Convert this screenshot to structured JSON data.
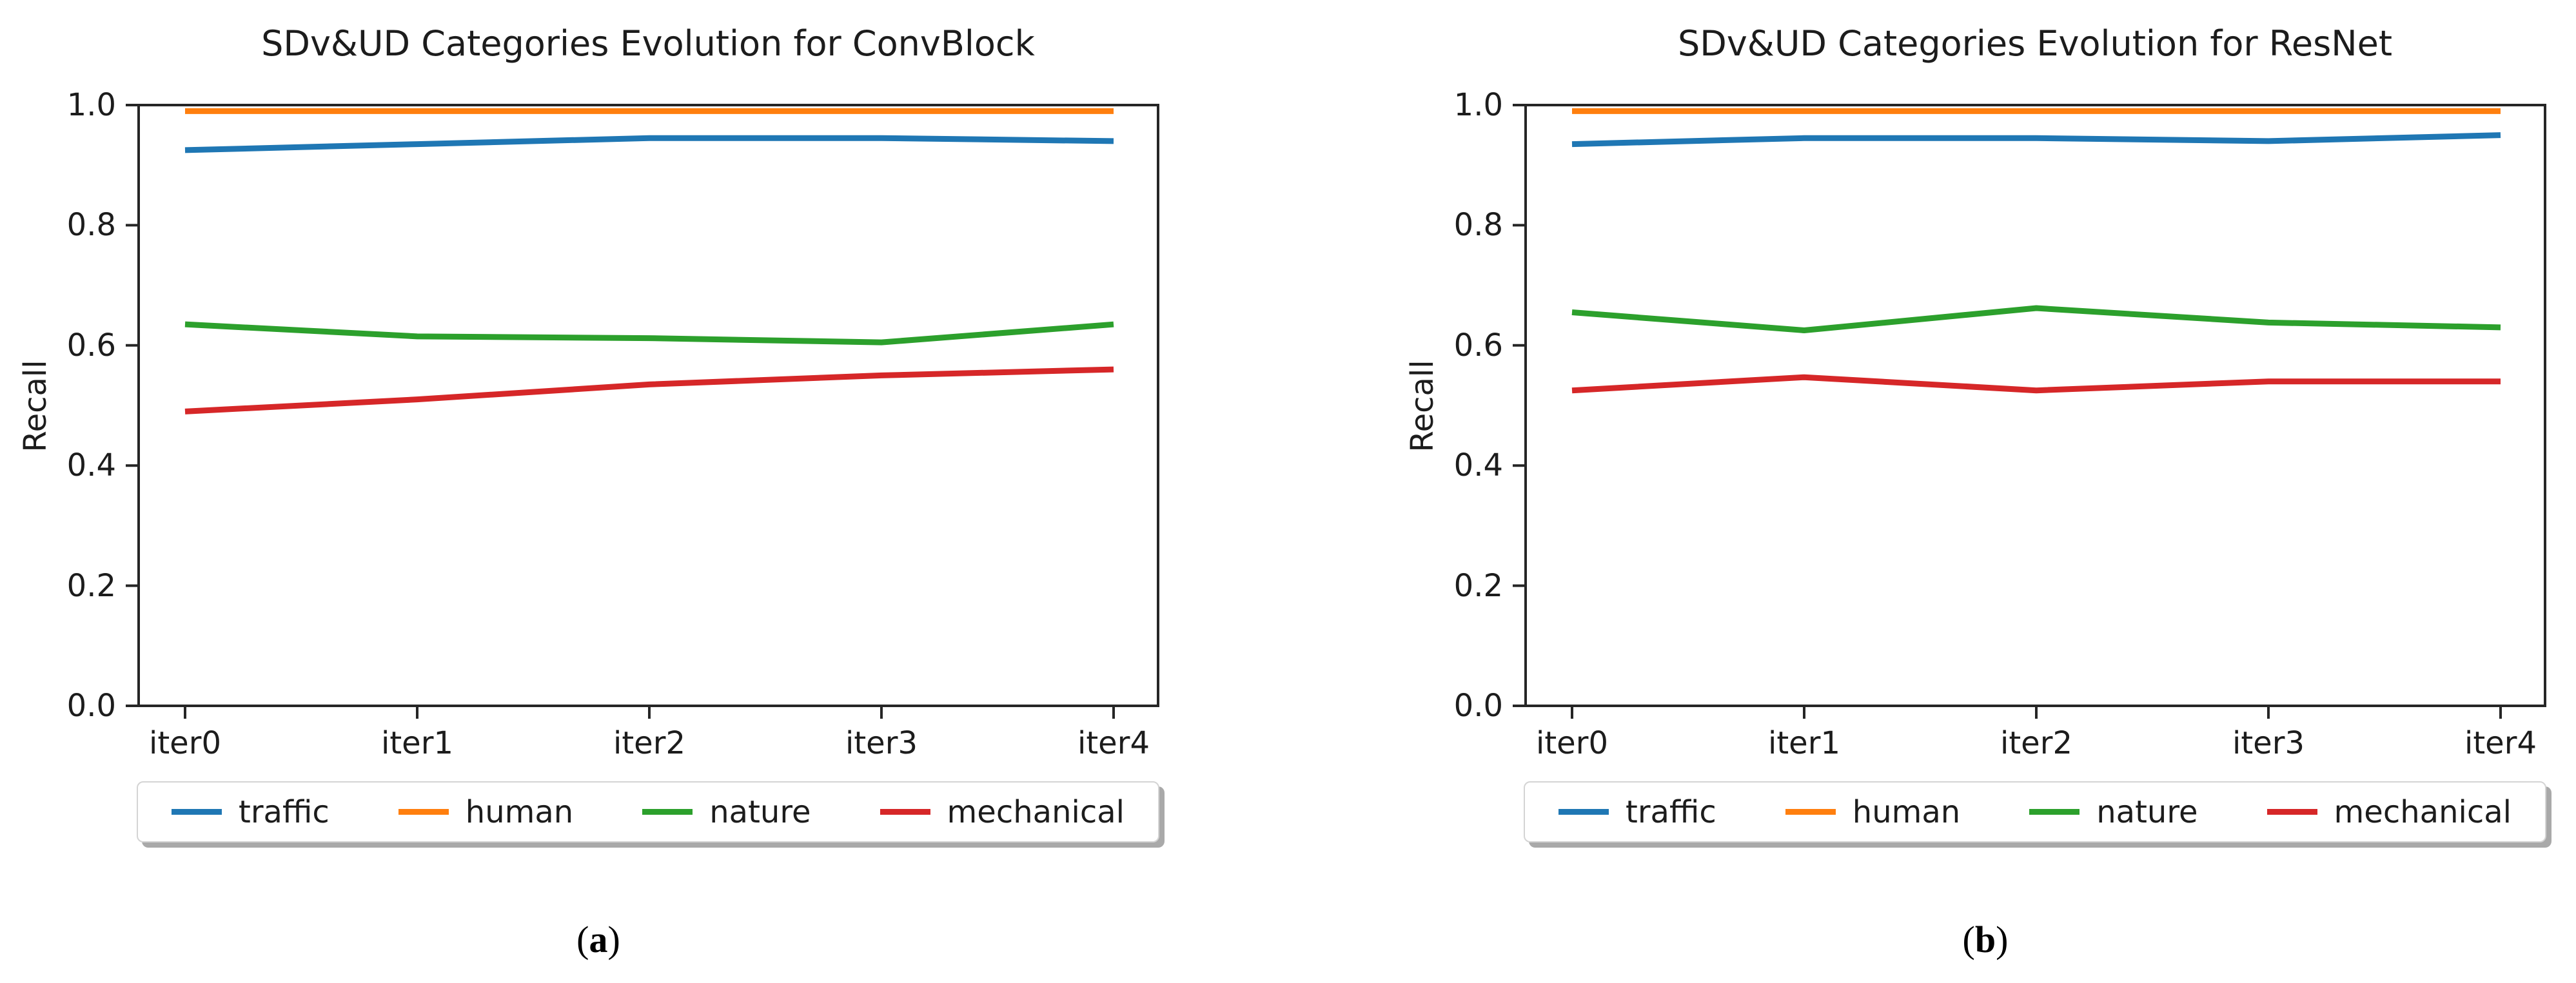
{
  "colors": {
    "axis": "#262626",
    "text": "#1c1c1c",
    "background": "#ffffff",
    "legend_border": "#d4d4d4",
    "legend_shadow": "#a9a9a9",
    "traffic": "#1f77b4",
    "human": "#ff7f0e",
    "nature": "#2ca02c",
    "mechanical": "#d62728"
  },
  "chart_data": [
    {
      "type": "line",
      "title": "SDv&UD Categories Evolution for ConvBlock",
      "ylabel": "Recall",
      "xlabel": "",
      "caption": {
        "prefix": "(",
        "letter": "a",
        "suffix": ")"
      },
      "categories": [
        "iter0",
        "iter1",
        "iter2",
        "iter3",
        "iter4"
      ],
      "y_ticks": [
        "0.0",
        "0.2",
        "0.4",
        "0.6",
        "0.8",
        "1.0"
      ],
      "ylim": [
        0.0,
        1.0
      ],
      "grid": false,
      "legend_position": "below",
      "series": [
        {
          "name": "traffic",
          "color": "#1f77b4",
          "values": [
            0.925,
            0.935,
            0.945,
            0.945,
            0.94
          ]
        },
        {
          "name": "human",
          "color": "#ff7f0e",
          "values": [
            0.99,
            0.99,
            0.99,
            0.99,
            0.99
          ]
        },
        {
          "name": "nature",
          "color": "#2ca02c",
          "values": [
            0.635,
            0.615,
            0.612,
            0.605,
            0.635
          ]
        },
        {
          "name": "mechanical",
          "color": "#d62728",
          "values": [
            0.49,
            0.51,
            0.535,
            0.55,
            0.56
          ]
        }
      ]
    },
    {
      "type": "line",
      "title": "SDv&UD Categories Evolution for ResNet",
      "ylabel": "Recall",
      "xlabel": "",
      "caption": {
        "prefix": "(",
        "letter": "b",
        "suffix": ")"
      },
      "categories": [
        "iter0",
        "iter1",
        "iter2",
        "iter3",
        "iter4"
      ],
      "y_ticks": [
        "0.0",
        "0.2",
        "0.4",
        "0.6",
        "0.8",
        "1.0"
      ],
      "ylim": [
        0.0,
        1.0
      ],
      "grid": false,
      "legend_position": "below",
      "series": [
        {
          "name": "traffic",
          "color": "#1f77b4",
          "values": [
            0.935,
            0.945,
            0.945,
            0.94,
            0.95
          ]
        },
        {
          "name": "human",
          "color": "#ff7f0e",
          "values": [
            0.99,
            0.99,
            0.99,
            0.99,
            0.99
          ]
        },
        {
          "name": "nature",
          "color": "#2ca02c",
          "values": [
            0.655,
            0.625,
            0.662,
            0.638,
            0.63
          ]
        },
        {
          "name": "mechanical",
          "color": "#d62728",
          "values": [
            0.525,
            0.547,
            0.525,
            0.54,
            0.54
          ]
        }
      ]
    }
  ]
}
